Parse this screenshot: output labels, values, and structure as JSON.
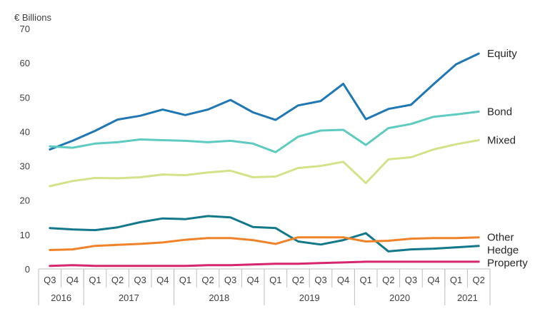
{
  "chart_data": {
    "type": "line",
    "ylabel": "€ Billions",
    "ylim": [
      0,
      70
    ],
    "yticks": [
      0,
      10,
      20,
      30,
      40,
      50,
      60,
      70
    ],
    "grid": false,
    "legend": "labels at right end of lines",
    "categories": [
      "Q3",
      "Q4",
      "Q1",
      "Q2",
      "Q3",
      "Q4",
      "Q1",
      "Q2",
      "Q3",
      "Q4",
      "Q1",
      "Q2",
      "Q3",
      "Q4",
      "Q1",
      "Q2",
      "Q3",
      "Q4",
      "Q1",
      "Q2"
    ],
    "years": [
      {
        "label": "2016",
        "span": 2
      },
      {
        "label": "2017",
        "span": 4
      },
      {
        "label": "2018",
        "span": 4
      },
      {
        "label": "2019",
        "span": 4
      },
      {
        "label": "2020",
        "span": 4
      },
      {
        "label": "2021",
        "span": 2
      }
    ],
    "series": [
      {
        "name": "Equity",
        "color": "#1f77b4",
        "values": [
          34.8,
          37.3,
          40.2,
          43.5,
          44.6,
          46.4,
          44.8,
          46.4,
          49.2,
          45.6,
          43.4,
          47.6,
          48.9,
          53.9,
          43.6,
          46.6,
          47.8,
          53.8,
          59.6,
          62.7
        ]
      },
      {
        "name": "Bond",
        "color": "#5ecbc0",
        "values": [
          35.7,
          35.3,
          36.5,
          36.9,
          37.7,
          37.5,
          37.3,
          36.9,
          37.3,
          36.5,
          34.0,
          38.5,
          40.3,
          40.5,
          36.1,
          41.0,
          42.2,
          44.3,
          45.0,
          45.8
        ]
      },
      {
        "name": "Mixed",
        "color": "#d4e28a",
        "values": [
          24.1,
          25.6,
          26.5,
          26.4,
          26.7,
          27.5,
          27.3,
          28.1,
          28.6,
          26.7,
          26.9,
          29.4,
          30.0,
          31.2,
          25.0,
          31.9,
          32.5,
          34.8,
          36.3,
          37.5
        ]
      },
      {
        "name": "Hedge",
        "color": "#13788a",
        "values": [
          11.9,
          11.5,
          11.3,
          12.1,
          13.6,
          14.7,
          14.5,
          15.4,
          15.0,
          12.2,
          11.9,
          8.0,
          7.1,
          8.4,
          10.4,
          5.1,
          5.7,
          5.9,
          6.3,
          6.7
        ]
      },
      {
        "name": "Other",
        "color": "#f0832a",
        "values": [
          5.5,
          5.7,
          6.7,
          7.0,
          7.3,
          7.7,
          8.5,
          9.0,
          9.0,
          8.4,
          7.3,
          9.2,
          9.2,
          9.2,
          8.0,
          8.2,
          8.8,
          9.0,
          9.0,
          9.2
        ]
      },
      {
        "name": "Property",
        "color": "#d6266d",
        "values": [
          0.9,
          1.1,
          0.9,
          0.9,
          0.9,
          0.9,
          0.9,
          1.1,
          1.1,
          1.3,
          1.5,
          1.5,
          1.7,
          1.9,
          2.1,
          2.1,
          2.1,
          2.1,
          2.1,
          2.1
        ]
      }
    ]
  }
}
